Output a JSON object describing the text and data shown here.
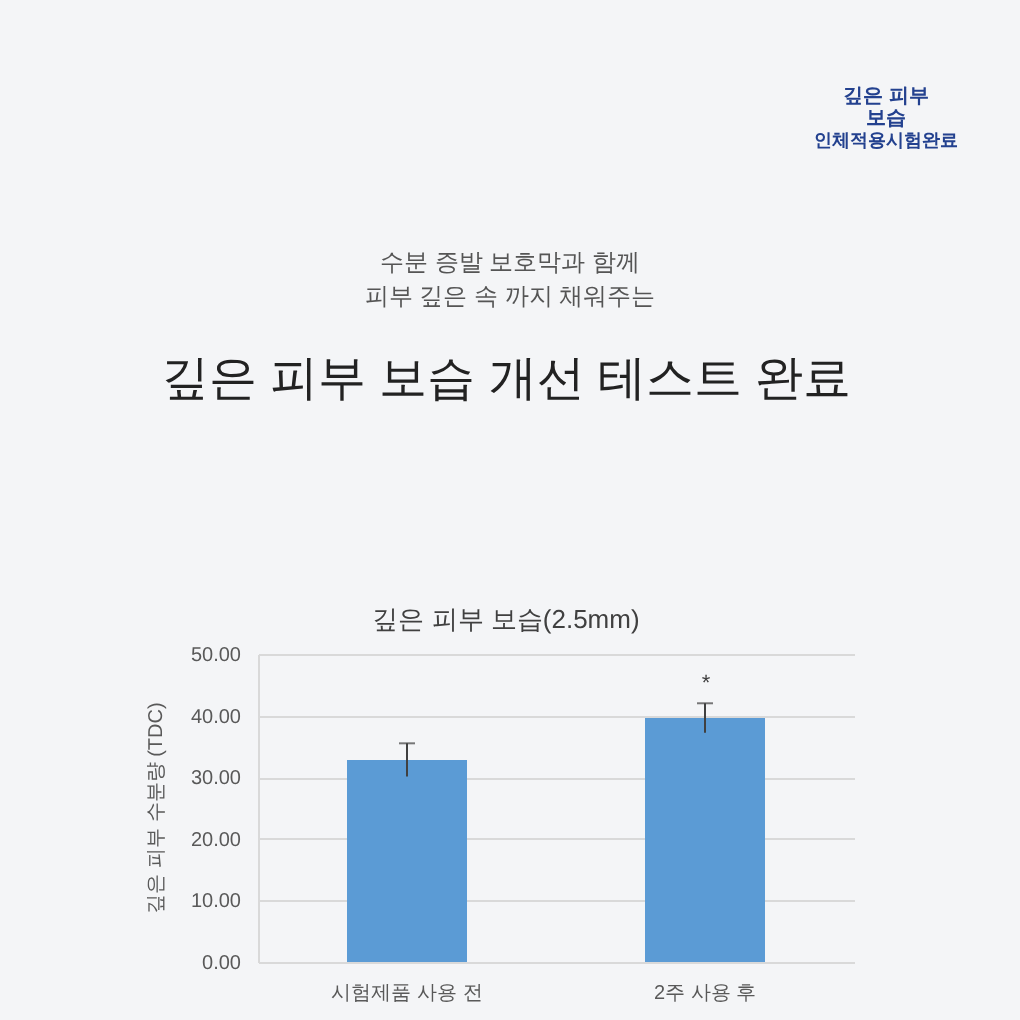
{
  "chart_data": {
    "type": "bar",
    "title": "깊은 피부 보습(2.5mm)",
    "ylabel": "깊은 피부 수분량 (TDC)",
    "categories": [
      "시험제품 사용 전",
      "2주 사용 후"
    ],
    "values": [
      32.8,
      39.6
    ],
    "errors": [
      2.7,
      2.4
    ],
    "color": "#5b9bd5",
    "ylim": [
      0,
      50
    ],
    "yticks": [
      {
        "value": 0,
        "label": "0.00"
      },
      {
        "value": 10,
        "label": "10.00"
      },
      {
        "value": 20,
        "label": "20.00"
      },
      {
        "value": 30,
        "label": "30.00"
      },
      {
        "value": 40,
        "label": "40.00"
      },
      {
        "value": 50,
        "label": "50.00"
      }
    ],
    "grid": "y",
    "annotations": [
      "수분 증발 보호막과 함께\n피부 깊은 속 까지 채워주는",
      "깊은 피부 보습 개선 테스트 완료",
      "깊은 피부\n보습",
      "인체적용시험완료",
      "*"
    ]
  }
}
